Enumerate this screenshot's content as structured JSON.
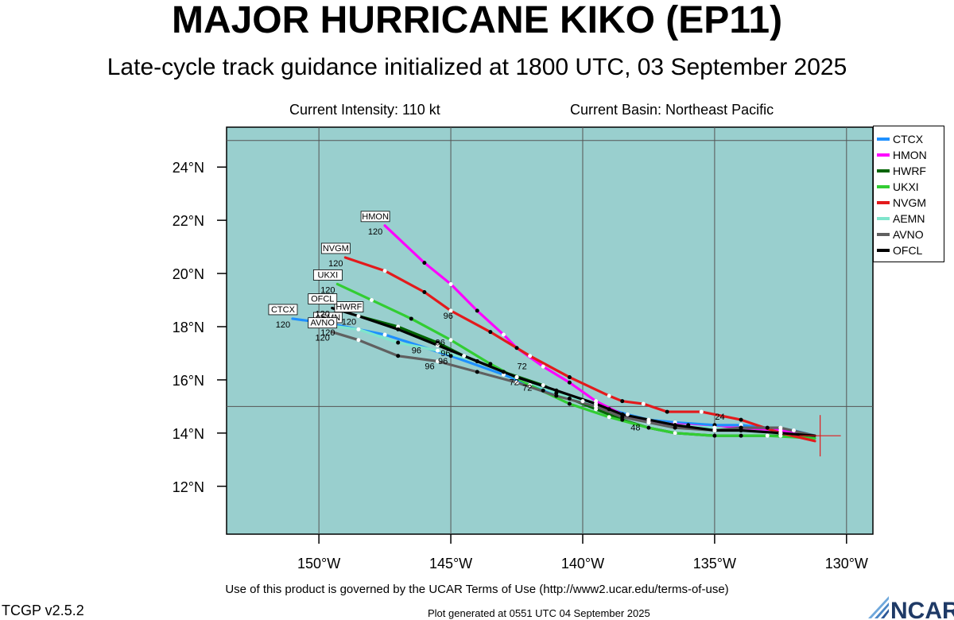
{
  "header": {
    "title": "MAJOR HURRICANE KIKO (EP11)",
    "subtitle": "Late-cycle track guidance initialized at 1800 UTC, 03 September 2025",
    "intensity": "Current Intensity: 110 kt",
    "basin": "Current Basin: Northeast Pacific"
  },
  "footer": {
    "terms": "Use of this product is governed by the UCAR Terms of Use (http://www2.ucar.edu/terms-of-use)",
    "version": "TCGP v2.5.2",
    "generated": "Plot generated at 0551 UTC   04 September 2025",
    "logo_text": "NCAR"
  },
  "colors": {
    "ocean": "#99cfce",
    "grid": "#555555"
  },
  "chart_data": {
    "type": "line",
    "x_ticks": [
      "150°W",
      "145°W",
      "140°W",
      "135°W",
      "130°W"
    ],
    "x_tick_values": [
      -150,
      -145,
      -140,
      -135,
      -130
    ],
    "y_ticks": [
      "12°N",
      "14°N",
      "16°N",
      "18°N",
      "20°N",
      "22°N",
      "24°N"
    ],
    "y_tick_values": [
      12,
      14,
      16,
      18,
      20,
      22,
      24
    ],
    "xlim": [
      -153.5,
      -129
    ],
    "ylim": [
      10.2,
      25.5
    ],
    "current_position": [
      -131.0,
      13.9
    ],
    "series": [
      {
        "name": "CTCX",
        "color": "#1e90ff",
        "points": [
          [
            -131.2,
            13.9
          ],
          [
            -132.0,
            14.1
          ],
          [
            -133.0,
            14.2
          ],
          [
            -134.0,
            14.3
          ],
          [
            -135.0,
            14.3
          ],
          [
            -136.5,
            14.4
          ],
          [
            -137.5,
            14.5
          ],
          [
            -138.3,
            14.7
          ],
          [
            -139.0,
            14.9
          ],
          [
            -140.0,
            15.2
          ],
          [
            -141.5,
            15.6
          ],
          [
            -143.0,
            16.2
          ],
          [
            -145.0,
            16.9
          ],
          [
            -147.5,
            17.7
          ],
          [
            -149.5,
            18.1
          ],
          [
            -151.0,
            18.3
          ]
        ],
        "labels": [],
        "tag": "CTCX",
        "tag_label": "120"
      },
      {
        "name": "HMON",
        "color": "#ff00ff",
        "points": [
          [
            -131.2,
            13.9
          ],
          [
            -132.5,
            14.1
          ],
          [
            -134.0,
            14.2
          ],
          [
            -135.0,
            14.2
          ],
          [
            -136.0,
            14.3
          ],
          [
            -137.5,
            14.4
          ],
          [
            -138.5,
            14.7
          ],
          [
            -139.5,
            15.2
          ],
          [
            -140.5,
            15.9
          ],
          [
            -141.5,
            16.5
          ],
          [
            -142.5,
            17.2
          ],
          [
            -143.0,
            17.7
          ],
          [
            -144.0,
            18.6
          ],
          [
            -145.0,
            19.6
          ],
          [
            -146.0,
            20.4
          ],
          [
            -147.5,
            21.8
          ]
        ],
        "labels": [
          {
            "text": "96",
            "at": [
              -145.1,
              18.3
            ]
          }
        ],
        "tag": "HMON",
        "tag_label": "120"
      },
      {
        "name": "HWRF",
        "color": "#006400",
        "points": [
          [
            -131.2,
            13.9
          ],
          [
            -132.5,
            13.9
          ],
          [
            -134.0,
            13.9
          ],
          [
            -135.0,
            13.9
          ],
          [
            -136.5,
            14.0
          ],
          [
            -137.5,
            14.2
          ],
          [
            -138.5,
            14.5
          ],
          [
            -139.5,
            14.9
          ],
          [
            -140.5,
            15.3
          ],
          [
            -141.5,
            15.8
          ],
          [
            -143.0,
            16.3
          ],
          [
            -144.5,
            16.9
          ],
          [
            -145.5,
            17.4
          ],
          [
            -147.0,
            18.0
          ],
          [
            -148.5,
            18.4
          ]
        ],
        "labels": [
          {
            "text": "96",
            "at": [
              -145.4,
              17.3
            ]
          },
          {
            "text": "72",
            "at": [
              -142.3,
              16.4
            ]
          }
        ],
        "tag": "HWRF",
        "tag_label": "120"
      },
      {
        "name": "UKXI",
        "color": "#32cd32",
        "points": [
          [
            -131.2,
            13.8
          ],
          [
            -133.0,
            13.9
          ],
          [
            -135.0,
            13.9
          ],
          [
            -136.5,
            14.0
          ],
          [
            -137.5,
            14.2
          ],
          [
            -139.0,
            14.6
          ],
          [
            -140.5,
            15.1
          ],
          [
            -142.0,
            15.8
          ],
          [
            -143.5,
            16.6
          ],
          [
            -145.0,
            17.5
          ],
          [
            -146.5,
            18.3
          ],
          [
            -148.0,
            19.0
          ],
          [
            -149.3,
            19.6
          ]
        ],
        "labels": [
          {
            "text": "96",
            "at": [
              -145.2,
              16.9
            ]
          }
        ],
        "tag": "UKXI",
        "tag_label": "120"
      },
      {
        "name": "NVGM",
        "color": "#e31a1c",
        "points": [
          [
            -131.2,
            13.7
          ],
          [
            -132.5,
            14.0
          ],
          [
            -134.0,
            14.5
          ],
          [
            -135.5,
            14.8
          ],
          [
            -136.8,
            14.8
          ],
          [
            -137.7,
            15.1
          ],
          [
            -138.5,
            15.2
          ],
          [
            -139.0,
            15.4
          ],
          [
            -140.5,
            16.1
          ],
          [
            -142.0,
            16.9
          ],
          [
            -143.5,
            17.8
          ],
          [
            -145.0,
            18.6
          ],
          [
            -146.0,
            19.3
          ],
          [
            -147.5,
            20.1
          ],
          [
            -149.0,
            20.6
          ]
        ],
        "labels": [],
        "tag": "NVGM",
        "tag_label": "120"
      },
      {
        "name": "AEMN",
        "color": "#7fe5cc",
        "points": [
          [
            -131.2,
            13.9
          ],
          [
            -132.5,
            14.0
          ],
          [
            -134.0,
            14.1
          ],
          [
            -135.0,
            14.2
          ],
          [
            -136.5,
            14.3
          ],
          [
            -137.5,
            14.5
          ],
          [
            -138.5,
            14.7
          ],
          [
            -139.5,
            15.0
          ],
          [
            -141.0,
            15.5
          ],
          [
            -142.5,
            16.1
          ],
          [
            -144.0,
            16.7
          ],
          [
            -145.5,
            17.1
          ],
          [
            -147.0,
            17.4
          ],
          [
            -148.5,
            17.9
          ],
          [
            -149.3,
            18.0
          ]
        ],
        "labels": [
          {
            "text": "96",
            "at": [
              -146.3,
              17.0
            ]
          },
          {
            "text": "72",
            "at": [
              -142.6,
              15.8
            ]
          }
        ],
        "tag": "AEMN",
        "tag_label": "120"
      },
      {
        "name": "AVNO",
        "color": "#606060",
        "points": [
          [
            -131.2,
            13.9
          ],
          [
            -132.5,
            14.2
          ],
          [
            -134.0,
            14.2
          ],
          [
            -135.0,
            14.1
          ],
          [
            -136.5,
            14.2
          ],
          [
            -137.5,
            14.4
          ],
          [
            -138.5,
            14.6
          ],
          [
            -139.5,
            15.0
          ],
          [
            -141.0,
            15.4
          ],
          [
            -142.5,
            15.9
          ],
          [
            -144.0,
            16.3
          ],
          [
            -145.5,
            16.7
          ],
          [
            -147.0,
            16.9
          ],
          [
            -148.5,
            17.5
          ],
          [
            -149.5,
            17.8
          ]
        ],
        "labels": [
          {
            "text": "96",
            "at": [
              -145.8,
              16.4
            ]
          }
        ],
        "tag": "AVNO",
        "tag_label": "120"
      },
      {
        "name": "OFCL",
        "color": "#000000",
        "points": [
          [
            -131.2,
            13.9
          ],
          [
            -132.5,
            14.0
          ],
          [
            -134.0,
            14.1
          ],
          [
            -135.0,
            14.1
          ],
          [
            -136.5,
            14.3
          ],
          [
            -137.5,
            14.5
          ],
          [
            -138.5,
            14.7
          ],
          [
            -139.5,
            15.1
          ],
          [
            -141.0,
            15.6
          ],
          [
            -142.5,
            16.1
          ],
          [
            -144.0,
            16.7
          ],
          [
            -145.5,
            17.3
          ],
          [
            -147.0,
            17.9
          ],
          [
            -148.5,
            18.4
          ],
          [
            -149.5,
            18.7
          ]
        ],
        "labels": [
          {
            "text": "24",
            "at": [
              -134.8,
              14.5
            ]
          },
          {
            "text": "48",
            "at": [
              -138.0,
              14.1
            ]
          },
          {
            "text": "96",
            "at": [
              -145.3,
              16.6
            ]
          },
          {
            "text": "72",
            "at": [
              -142.1,
              15.6
            ]
          }
        ],
        "tag": "OFCL",
        "tag_label": "120"
      }
    ]
  }
}
